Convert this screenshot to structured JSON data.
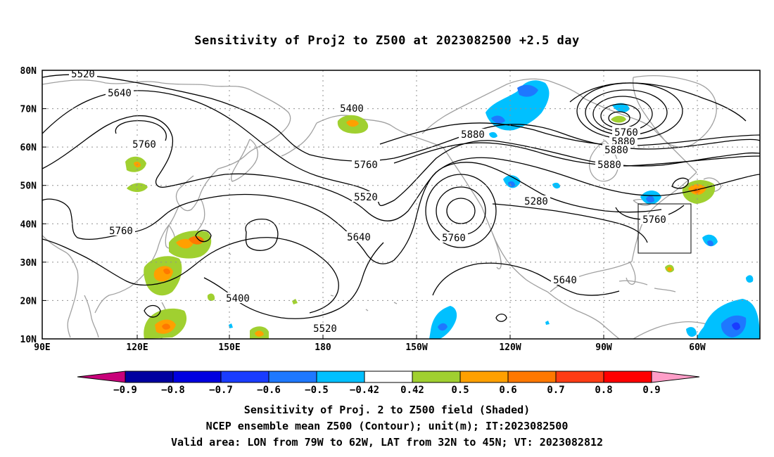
{
  "title": "Sensitivity of Proj2 to Z500 at 2023082500 +2.5 day",
  "map": {
    "lon_range_label": "90E to 30W",
    "lat_ticks": [
      "80N",
      "70N",
      "60N",
      "50N",
      "40N",
      "30N",
      "20N",
      "10N"
    ],
    "lon_ticks": [
      "90E",
      "120E",
      "150E",
      "180",
      "150W",
      "120W",
      "90W",
      "60W"
    ],
    "contour_labels": [
      "5520",
      "5640",
      "5760",
      "5400",
      "5760",
      "5520",
      "5640",
      "5760",
      "5760",
      "5880",
      "5280",
      "5400",
      "5520",
      "5640",
      "5760",
      "5880",
      "5880",
      "5880",
      "5760"
    ],
    "valid_box": {
      "lon_from": "79W",
      "lon_to": "62W",
      "lat_from": "32N",
      "lat_to": "45N"
    }
  },
  "colorbar": {
    "labels": [
      "-0.9",
      "-0.8",
      "-0.7",
      "-0.6",
      "-0.5",
      "-0.42",
      "0.42",
      "0.5",
      "0.6",
      "0.7",
      "0.8",
      "0.9"
    ],
    "colors": {
      "lt_-0.9": "#c8007a",
      "bin_-0.9": "#0000a0",
      "bin_-0.8": "#0000e0",
      "bin_-0.7": "#1a3cff",
      "bin_-0.6": "#1e78ff",
      "bin_-0.5": "#00c0ff",
      "bin_mid": "#ffffff",
      "bin_0.42": "#a0d030",
      "bin_0.5": "#ffa000",
      "bin_0.6": "#ff7800",
      "bin_0.7": "#ff3c14",
      "bin_0.8": "#ff0000",
      "gt_0.9": "#ff9ec8"
    }
  },
  "captions": {
    "line1": "Sensitivity of Proj. 2 to Z500 field (Shaded)",
    "line2": "NCEP ensemble mean Z500 (Contour); unit(m); IT:2023082500",
    "line3": "Valid area: LON from 79W to 62W, LAT from 32N to 45N; VT: 2023082812"
  }
}
